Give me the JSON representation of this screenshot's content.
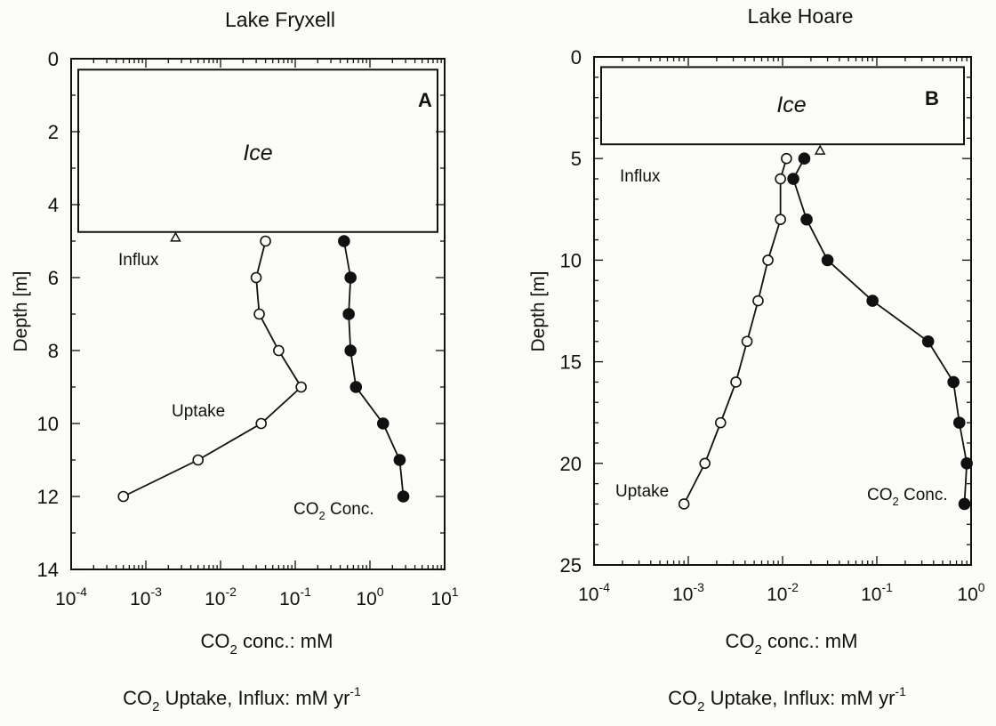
{
  "chart_data": [
    {
      "type": "line",
      "title": "Lake Fryxell",
      "panel_letter": "A",
      "ylabel": "Depth [m]",
      "xlabel_1_pre": "CO",
      "xlabel_1_sub": "2",
      "xlabel_1_post": " conc.: mM",
      "xlabel_2_pre": "CO",
      "xlabel_2_sub": "2",
      "xlabel_2_post": " Uptake, Influx: mM yr",
      "xlabel_2_sup": "-1",
      "x_scale": "log",
      "xlim": [
        0.0001,
        10
      ],
      "ylim": [
        0,
        14
      ],
      "y_inverted": true,
      "x_ticks": [
        {
          "value": 0.0001,
          "base": "10",
          "exp": "-4"
        },
        {
          "value": 0.001,
          "base": "10",
          "exp": "-3"
        },
        {
          "value": 0.01,
          "base": "10",
          "exp": "-2"
        },
        {
          "value": 0.1,
          "base": "10",
          "exp": "-1"
        },
        {
          "value": 1,
          "base": "10",
          "exp": "0"
        },
        {
          "value": 10,
          "base": "10",
          "exp": "1"
        }
      ],
      "y_ticks": [
        0,
        2,
        4,
        6,
        8,
        10,
        12,
        14
      ],
      "ice": {
        "label": "Ice",
        "depth_top": 0.3,
        "depth_bottom": 4.75
      },
      "influx": {
        "label": "Influx",
        "x": 0.0025,
        "depth": 4.9
      },
      "series": [
        {
          "name": "Uptake",
          "marker": "open-circle",
          "points": [
            [
              0.04,
              5
            ],
            [
              0.03,
              6
            ],
            [
              0.033,
              7
            ],
            [
              0.06,
              8
            ],
            [
              0.12,
              9
            ],
            [
              0.035,
              10
            ],
            [
              0.005,
              11
            ],
            [
              0.0005,
              12
            ]
          ]
        },
        {
          "name": "CO2 Conc.",
          "name_pre": "CO",
          "name_sub": "2",
          "name_post": " Conc.",
          "marker": "filled-circle",
          "points": [
            [
              0.45,
              5
            ],
            [
              0.55,
              6
            ],
            [
              0.52,
              7
            ],
            [
              0.55,
              8
            ],
            [
              0.65,
              9
            ],
            [
              1.5,
              10
            ],
            [
              2.5,
              11
            ],
            [
              2.8,
              12
            ]
          ]
        }
      ]
    },
    {
      "type": "line",
      "title": "Lake Hoare",
      "panel_letter": "B",
      "ylabel": "Depth [m]",
      "xlabel_1_pre": "CO",
      "xlabel_1_sub": "2",
      "xlabel_1_post": " conc.: mM",
      "xlabel_2_pre": "CO",
      "xlabel_2_sub": "2",
      "xlabel_2_post": " Uptake, Influx: mM yr",
      "xlabel_2_sup": "-1",
      "x_scale": "log",
      "xlim": [
        0.0001,
        1
      ],
      "ylim": [
        0,
        25
      ],
      "y_inverted": true,
      "x_ticks": [
        {
          "value": 0.0001,
          "base": "10",
          "exp": "-4"
        },
        {
          "value": 0.001,
          "base": "10",
          "exp": "-3"
        },
        {
          "value": 0.01,
          "base": "10",
          "exp": "-2"
        },
        {
          "value": 0.1,
          "base": "10",
          "exp": "-1"
        },
        {
          "value": 1,
          "base": "10",
          "exp": "0"
        }
      ],
      "y_ticks": [
        0,
        5,
        10,
        15,
        20,
        25
      ],
      "ice": {
        "label": "Ice",
        "depth_top": 0.5,
        "depth_bottom": 4.3
      },
      "influx": {
        "label": "Influx",
        "x": 0.025,
        "depth": 4.6
      },
      "series": [
        {
          "name": "Uptake",
          "marker": "open-circle",
          "points": [
            [
              0.011,
              5
            ],
            [
              0.0095,
              6
            ],
            [
              0.0095,
              8
            ],
            [
              0.007,
              10
            ],
            [
              0.0055,
              12
            ],
            [
              0.0042,
              14
            ],
            [
              0.0032,
              16
            ],
            [
              0.0022,
              18
            ],
            [
              0.0015,
              20
            ],
            [
              0.0009,
              22
            ]
          ]
        },
        {
          "name": "CO2 Conc.",
          "name_pre": "CO",
          "name_sub": "2",
          "name_post": " Conc.",
          "marker": "filled-circle",
          "points": [
            [
              0.017,
              5
            ],
            [
              0.013,
              6
            ],
            [
              0.018,
              8
            ],
            [
              0.03,
              10
            ],
            [
              0.09,
              12
            ],
            [
              0.35,
              14
            ],
            [
              0.65,
              16
            ],
            [
              0.75,
              18
            ],
            [
              0.9,
              20
            ],
            [
              0.85,
              22
            ]
          ]
        }
      ]
    }
  ]
}
